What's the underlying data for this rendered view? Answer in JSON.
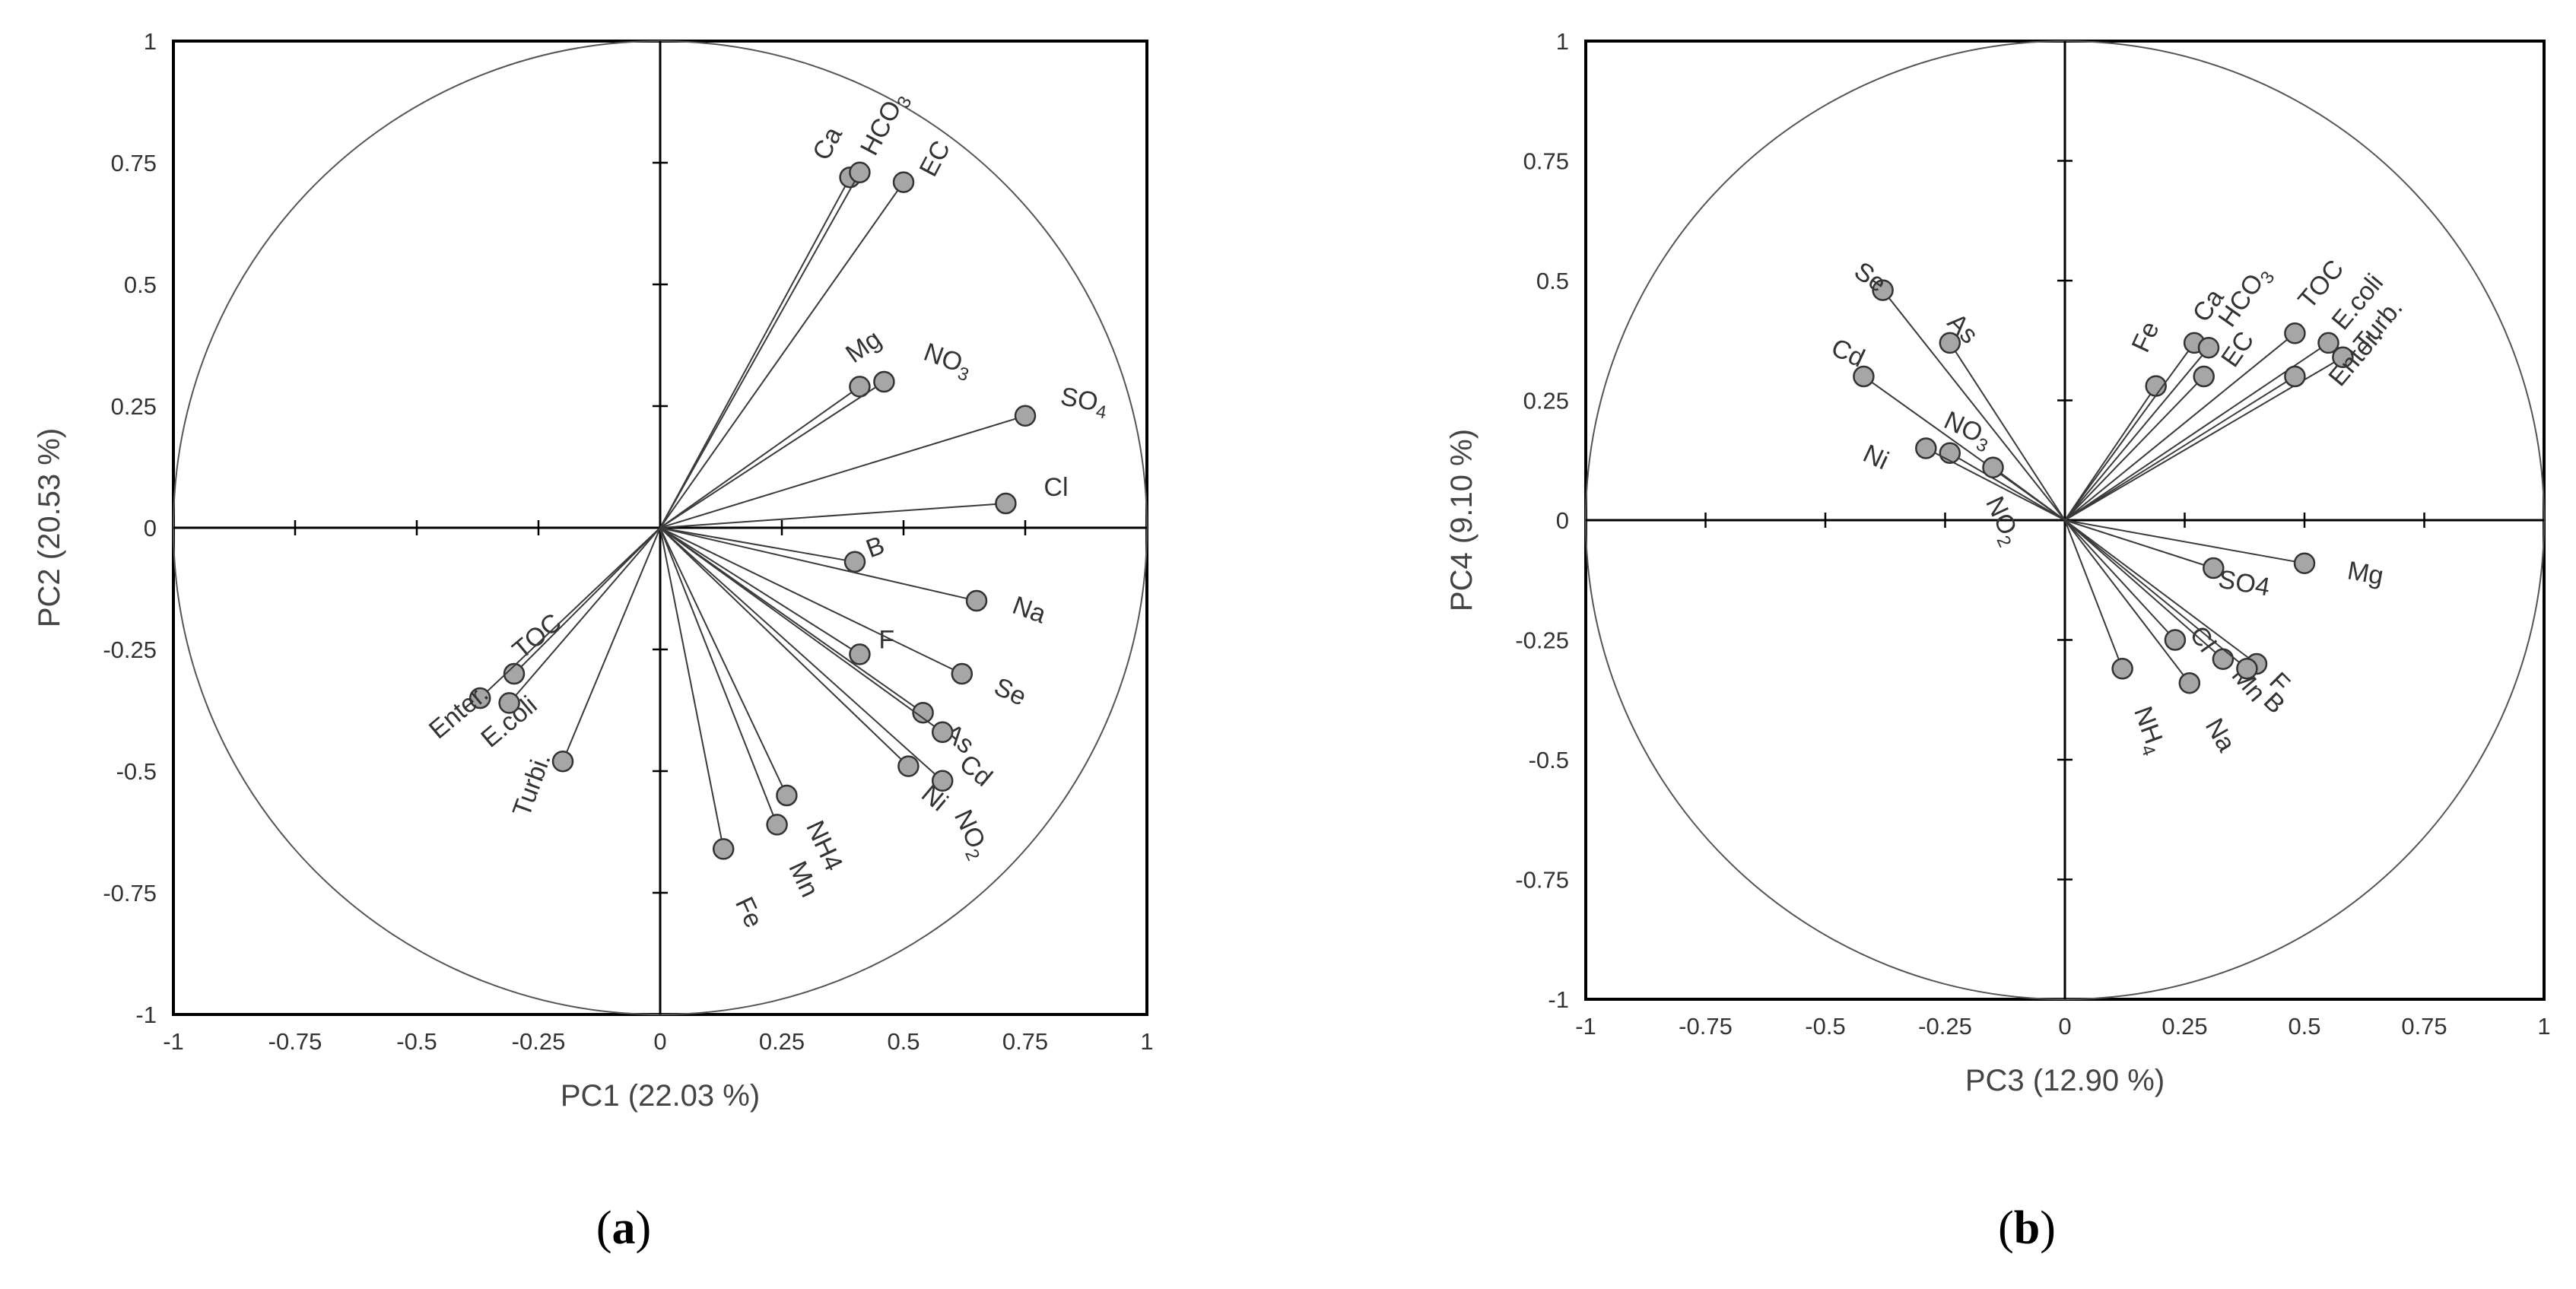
{
  "chart_data": [
    {
      "type": "scatter",
      "panel_label": {
        "open": "(",
        "letter": "a",
        "close": ")"
      },
      "xlabel": "PC1 (22.03 %)",
      "ylabel": "PC2 (20.53 %)",
      "xlim": [
        -1,
        1
      ],
      "ylim": [
        -1,
        1
      ],
      "xticks": [
        -1,
        -0.75,
        -0.5,
        -0.25,
        0,
        0.25,
        0.5,
        0.75,
        1
      ],
      "yticks": [
        -1,
        -0.75,
        -0.5,
        -0.25,
        0,
        0.25,
        0.5,
        0.75,
        1
      ],
      "xtick_labels": [
        "-1",
        "-0.75",
        "-0.5",
        "-0.25",
        "0",
        "0.25",
        "0.5",
        "0.75",
        "1"
      ],
      "ytick_labels": [
        "-1",
        "-0.75",
        "-0.5",
        "-0.25",
        "0",
        "0.25",
        "0.5",
        "0.75",
        "1"
      ],
      "correlation_circle": true,
      "points": [
        {
          "label": "Ca",
          "sub": "",
          "x": 0.39,
          "y": 0.72
        },
        {
          "label": "HCO",
          "sub": "3",
          "x": 0.41,
          "y": 0.73
        },
        {
          "label": "EC",
          "sub": "",
          "x": 0.5,
          "y": 0.71
        },
        {
          "label": "Mg",
          "sub": "",
          "x": 0.41,
          "y": 0.29
        },
        {
          "label": "NO",
          "sub": "3",
          "x": 0.46,
          "y": 0.3
        },
        {
          "label": "SO",
          "sub": "4",
          "x": 0.75,
          "y": 0.23
        },
        {
          "label": "Cl",
          "sub": "",
          "x": 0.71,
          "y": 0.05
        },
        {
          "label": "B",
          "sub": "",
          "x": 0.4,
          "y": -0.07
        },
        {
          "label": "Na",
          "sub": "",
          "x": 0.65,
          "y": -0.15
        },
        {
          "label": "F",
          "sub": "",
          "x": 0.41,
          "y": -0.26
        },
        {
          "label": "Se",
          "sub": "",
          "x": 0.62,
          "y": -0.3
        },
        {
          "label": "As",
          "sub": "",
          "x": 0.54,
          "y": -0.38
        },
        {
          "label": "Cd",
          "sub": "",
          "x": 0.58,
          "y": -0.42
        },
        {
          "label": "Ni",
          "sub": "",
          "x": 0.51,
          "y": -0.49
        },
        {
          "label": "NO",
          "sub": "2",
          "x": 0.58,
          "y": -0.52
        },
        {
          "label": "NH4",
          "sub": "",
          "x": 0.26,
          "y": -0.55
        },
        {
          "label": "Mn",
          "sub": "",
          "x": 0.24,
          "y": -0.61
        },
        {
          "label": "Fe",
          "sub": "",
          "x": 0.13,
          "y": -0.66
        },
        {
          "label": "TOC",
          "sub": "",
          "x": -0.3,
          "y": -0.3
        },
        {
          "label": "Enter.",
          "sub": "",
          "x": -0.37,
          "y": -0.35
        },
        {
          "label": "E.coli",
          "sub": "",
          "x": -0.31,
          "y": -0.36
        },
        {
          "label": "Turbi.",
          "sub": "",
          "x": -0.2,
          "y": -0.48
        }
      ]
    },
    {
      "type": "scatter",
      "panel_label": {
        "open": "(",
        "letter": "b",
        "close": ")"
      },
      "xlabel": "PC3 (12.90 %)",
      "ylabel": "PC4 (9.10 %)",
      "xlim": [
        -1,
        1
      ],
      "ylim": [
        -1,
        1
      ],
      "xticks": [
        -1,
        -0.75,
        -0.5,
        -0.25,
        0,
        0.25,
        0.5,
        0.75,
        1
      ],
      "yticks": [
        -1,
        -0.75,
        -0.5,
        -0.25,
        0,
        0.25,
        0.5,
        0.75,
        1
      ],
      "xtick_labels": [
        "-1",
        "-0.75",
        "-0.5",
        "-0.25",
        "0",
        "0.25",
        "0.5",
        "0.75",
        "1"
      ],
      "ytick_labels": [
        "-1",
        "-0.75",
        "-0.5",
        "-0.25",
        "0",
        "0.25",
        "0.5",
        "0.75",
        "1"
      ],
      "correlation_circle": true,
      "points": [
        {
          "label": "Se",
          "sub": "",
          "x": -0.38,
          "y": 0.48
        },
        {
          "label": "As",
          "sub": "",
          "x": -0.24,
          "y": 0.37
        },
        {
          "label": "Cd",
          "sub": "",
          "x": -0.42,
          "y": 0.3
        },
        {
          "label": "NO",
          "sub": "3",
          "x": -0.24,
          "y": 0.14
        },
        {
          "label": "Ni",
          "sub": "",
          "x": -0.29,
          "y": 0.15
        },
        {
          "label": "NO",
          "sub": "2",
          "x": -0.15,
          "y": 0.11
        },
        {
          "label": "Fe",
          "sub": "",
          "x": 0.19,
          "y": 0.28
        },
        {
          "label": "Ca",
          "sub": "",
          "x": 0.27,
          "y": 0.37
        },
        {
          "label": "HCO",
          "sub": "3",
          "x": 0.3,
          "y": 0.36
        },
        {
          "label": "EC",
          "sub": "",
          "x": 0.29,
          "y": 0.3
        },
        {
          "label": "TOC",
          "sub": "",
          "x": 0.48,
          "y": 0.39
        },
        {
          "label": "E.coli",
          "sub": "",
          "x": 0.55,
          "y": 0.37
        },
        {
          "label": "Turb.",
          "sub": "",
          "x": 0.58,
          "y": 0.34
        },
        {
          "label": "Enter.",
          "sub": "",
          "x": 0.48,
          "y": 0.3
        },
        {
          "label": "Mg",
          "sub": "",
          "x": 0.5,
          "y": -0.09
        },
        {
          "label": "SO4",
          "sub": "",
          "x": 0.31,
          "y": -0.1
        },
        {
          "label": "Cl",
          "sub": "",
          "x": 0.23,
          "y": -0.25
        },
        {
          "label": "Mn",
          "sub": "",
          "x": 0.33,
          "y": -0.29
        },
        {
          "label": "F",
          "sub": "",
          "x": 0.4,
          "y": -0.3
        },
        {
          "label": "B",
          "sub": "",
          "x": 0.38,
          "y": -0.31
        },
        {
          "label": "NH",
          "sub": "4",
          "x": 0.12,
          "y": -0.31
        },
        {
          "label": "Na",
          "sub": "",
          "x": 0.26,
          "y": -0.34
        }
      ]
    }
  ]
}
